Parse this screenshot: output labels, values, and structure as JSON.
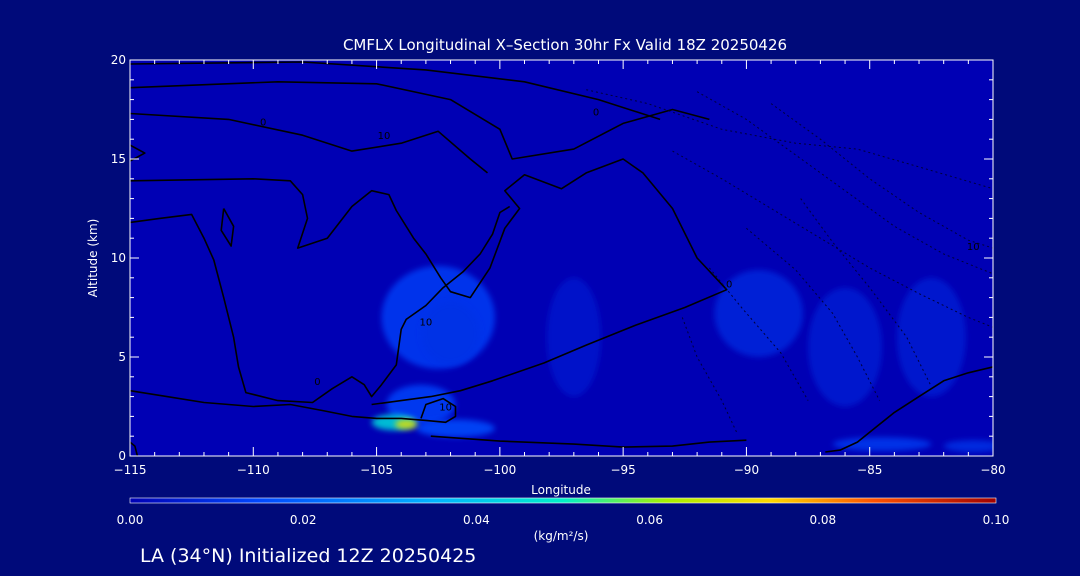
{
  "chart_data": {
    "type": "heatmap",
    "title": "CMFLX Longitudinal X–Section 30hr  Fx Valid 18Z 20250426",
    "xlabel": "Longitude",
    "ylabel": "Altitude (km)",
    "xlim": [
      -115,
      -80
    ],
    "ylim": [
      0,
      20
    ],
    "x_ticks": [
      -115,
      -110,
      -105,
      -100,
      -95,
      -90,
      -85,
      -80
    ],
    "x_tick_labels": [
      "−115",
      "−110",
      "−105",
      "−100",
      "−95",
      "−90",
      "−85",
      "−80"
    ],
    "y_ticks": [
      0,
      5,
      10,
      15,
      20
    ],
    "y_tick_labels": [
      "0",
      "5",
      "10",
      "15",
      "20"
    ],
    "colorbar": {
      "range": [
        0,
        0.1
      ],
      "tick_labels": [
        "0.00",
        "0.02",
        "0.04",
        "0.06",
        "0.08",
        "0.10"
      ],
      "units_label": "(kg/m²/s)"
    },
    "fill_blobs": [
      {
        "lon": -102.5,
        "alt": 7.0,
        "sx": 2.3,
        "sy": 2.6,
        "v": 0.013
      },
      {
        "lon": -102.0,
        "alt": 6.2,
        "sx": 1.2,
        "sy": 1.6,
        "v": 0.01
      },
      {
        "lon": -103.2,
        "alt": 2.6,
        "sx": 1.4,
        "sy": 1.0,
        "v": 0.014
      },
      {
        "lon": -101.8,
        "alt": 1.4,
        "sx": 1.6,
        "sy": 0.45,
        "v": 0.016
      },
      {
        "lon": -104.3,
        "alt": 1.7,
        "sx": 0.9,
        "sy": 0.4,
        "v": 0.045
      },
      {
        "lon": -103.8,
        "alt": 1.6,
        "sx": 0.45,
        "sy": 0.25,
        "v": 0.07
      },
      {
        "lon": -97.0,
        "alt": 6.0,
        "sx": 1.1,
        "sy": 3.0,
        "v": 0.005
      },
      {
        "lon": -89.5,
        "alt": 7.2,
        "sx": 1.8,
        "sy": 2.2,
        "v": 0.008
      },
      {
        "lon": -86.0,
        "alt": 5.5,
        "sx": 1.5,
        "sy": 3.0,
        "v": 0.006
      },
      {
        "lon": -82.5,
        "alt": 6.0,
        "sx": 1.4,
        "sy": 3.0,
        "v": 0.006
      },
      {
        "lon": -84.5,
        "alt": 0.6,
        "sx": 2.0,
        "sy": 0.35,
        "v": 0.012
      },
      {
        "lon": -80.8,
        "alt": 0.5,
        "sx": 1.2,
        "sy": 0.3,
        "v": 0.01
      }
    ],
    "contour_lines": [
      {
        "style": "solid",
        "points": [
          [
            -115,
            19.8
          ],
          [
            -108,
            19.9
          ],
          [
            -103,
            19.5
          ],
          [
            -99,
            18.9
          ],
          [
            -96,
            18.0
          ],
          [
            -93.5,
            17.0
          ]
        ]
      },
      {
        "style": "solid",
        "points": [
          [
            -115,
            18.6
          ],
          [
            -109,
            18.9
          ],
          [
            -105,
            18.8
          ],
          [
            -102,
            18.0
          ],
          [
            -100,
            16.5
          ],
          [
            -99.5,
            15.0
          ],
          [
            -97,
            15.5
          ],
          [
            -95,
            16.8
          ],
          [
            -93,
            17.5
          ],
          [
            -91.5,
            17.0
          ]
        ]
      },
      {
        "style": "solid",
        "points": [
          [
            -115,
            17.3
          ],
          [
            -111,
            17.0
          ],
          [
            -108,
            16.2
          ],
          [
            -106,
            15.4
          ],
          [
            -104,
            15.8
          ],
          [
            -102.5,
            16.4
          ],
          [
            -101.2,
            15.0
          ],
          [
            -100.5,
            14.3
          ]
        ]
      },
      {
        "style": "solid",
        "points": [
          [
            -115,
            15.7
          ],
          [
            -114.4,
            15.3
          ],
          [
            -115,
            14.9
          ]
        ]
      },
      {
        "style": "solid",
        "points": [
          [
            -115,
            13.9
          ],
          [
            -110,
            14.0
          ],
          [
            -108.5,
            13.9
          ],
          [
            -108,
            13.2
          ],
          [
            -107.8,
            12.0
          ],
          [
            -108.2,
            10.5
          ],
          [
            -107.0,
            11.0
          ],
          [
            -106.0,
            12.6
          ],
          [
            -105.2,
            13.4
          ],
          [
            -104.5,
            13.2
          ],
          [
            -104.2,
            12.4
          ],
          [
            -103.5,
            11.0
          ],
          [
            -103.0,
            10.2
          ],
          [
            -102.4,
            9.0
          ],
          [
            -102.0,
            8.3
          ],
          [
            -101.2,
            8.0
          ],
          [
            -100.4,
            9.5
          ],
          [
            -99.8,
            11.5
          ],
          [
            -99.2,
            12.5
          ],
          [
            -99.8,
            13.4
          ],
          [
            -99.0,
            14.2
          ],
          [
            -97.5,
            13.5
          ],
          [
            -96.5,
            14.3
          ],
          [
            -95.0,
            15.0
          ],
          [
            -94.2,
            14.3
          ],
          [
            -93.0,
            12.5
          ],
          [
            -92.0,
            10.0
          ],
          [
            -90.8,
            8.4
          ],
          [
            -92.5,
            7.5
          ],
          [
            -94.5,
            6.6
          ],
          [
            -96.5,
            5.6
          ],
          [
            -98.2,
            4.7
          ],
          [
            -100.3,
            3.8
          ],
          [
            -101.6,
            3.3
          ],
          [
            -102.8,
            3.0
          ],
          [
            -104.0,
            2.8
          ],
          [
            -105.2,
            2.6
          ]
        ]
      },
      {
        "style": "solid",
        "points": [
          [
            -115,
            11.8
          ],
          [
            -113.8,
            12.0
          ],
          [
            -112.5,
            12.2
          ],
          [
            -112.0,
            11.0
          ],
          [
            -111.6,
            9.9
          ],
          [
            -111.2,
            8.0
          ],
          [
            -110.8,
            6.0
          ],
          [
            -110.6,
            4.5
          ],
          [
            -110.3,
            3.2
          ],
          [
            -109.0,
            2.8
          ],
          [
            -107.6,
            2.7
          ],
          [
            -106.8,
            3.4
          ],
          [
            -106.0,
            4.0
          ],
          [
            -105.5,
            3.6
          ],
          [
            -105.2,
            3.0
          ],
          [
            -104.8,
            3.6
          ],
          [
            -104.2,
            4.6
          ],
          [
            -104.0,
            6.4
          ],
          [
            -103.8,
            6.9
          ],
          [
            -103.0,
            7.6
          ],
          [
            -102.3,
            8.5
          ],
          [
            -101.5,
            9.3
          ],
          [
            -100.8,
            10.2
          ],
          [
            -100.3,
            11.2
          ],
          [
            -100.0,
            12.3
          ],
          [
            -99.6,
            12.6
          ]
        ]
      },
      {
        "style": "solid",
        "points": [
          [
            -111.2,
            12.5
          ],
          [
            -110.8,
            11.6
          ],
          [
            -110.9,
            10.6
          ],
          [
            -111.3,
            11.4
          ],
          [
            -111.2,
            12.5
          ]
        ]
      },
      {
        "style": "solid",
        "points": [
          [
            -115,
            3.3
          ],
          [
            -113.5,
            3.0
          ],
          [
            -112.0,
            2.7
          ],
          [
            -110.0,
            2.5
          ],
          [
            -108.5,
            2.6
          ],
          [
            -107.2,
            2.3
          ],
          [
            -106.0,
            2.0
          ],
          [
            -105.0,
            1.9
          ],
          [
            -104.0,
            1.9
          ],
          [
            -103.0,
            1.8
          ],
          [
            -102.2,
            1.7
          ],
          [
            -101.8,
            2.0
          ],
          [
            -101.8,
            2.5
          ],
          [
            -102.3,
            2.9
          ],
          [
            -103.0,
            2.6
          ],
          [
            -103.2,
            1.9
          ]
        ]
      },
      {
        "style": "solid",
        "points": [
          [
            -114.7,
            0.0
          ],
          [
            -114.8,
            0.5
          ],
          [
            -115,
            0.7
          ]
        ]
      },
      {
        "style": "solid",
        "points": [
          [
            -102.8,
            1.0
          ],
          [
            -100.0,
            0.75
          ],
          [
            -97.0,
            0.6
          ],
          [
            -95.0,
            0.45
          ],
          [
            -93.0,
            0.5
          ],
          [
            -91.5,
            0.7
          ],
          [
            -90.0,
            0.8
          ]
        ]
      },
      {
        "style": "solid",
        "points": [
          [
            -80,
            4.5
          ],
          [
            -81.0,
            4.2
          ],
          [
            -82.0,
            3.8
          ],
          [
            -83.0,
            3.0
          ],
          [
            -84.0,
            2.2
          ],
          [
            -84.8,
            1.4
          ],
          [
            -85.5,
            0.7
          ],
          [
            -86.2,
            0.3
          ],
          [
            -86.8,
            0.2
          ]
        ]
      },
      {
        "style": "dotted",
        "points": [
          [
            -92,
            18.4
          ],
          [
            -90,
            17.0
          ],
          [
            -88,
            15.2
          ],
          [
            -86,
            13.4
          ],
          [
            -84,
            11.6
          ],
          [
            -82,
            10.2
          ],
          [
            -80,
            9.2
          ]
        ]
      },
      {
        "style": "dotted",
        "points": [
          [
            -93,
            15.4
          ],
          [
            -91,
            14.0
          ],
          [
            -89,
            12.5
          ],
          [
            -87,
            11.0
          ],
          [
            -85,
            9.5
          ],
          [
            -83,
            8.2
          ],
          [
            -81,
            7.0
          ],
          [
            -80,
            6.5
          ]
        ]
      },
      {
        "style": "dotted",
        "points": [
          [
            -89,
            17.8
          ],
          [
            -87,
            16.0
          ],
          [
            -85,
            14.0
          ],
          [
            -83,
            12.3
          ],
          [
            -81,
            10.9
          ],
          [
            -80,
            10.5
          ]
        ]
      },
      {
        "style": "dotted",
        "points": [
          [
            -96.5,
            18.5
          ],
          [
            -94,
            17.8
          ],
          [
            -91,
            16.5
          ],
          [
            -88,
            15.8
          ],
          [
            -85.5,
            15.5
          ],
          [
            -83,
            14.6
          ],
          [
            -80,
            13.5
          ]
        ]
      },
      {
        "style": "dotted",
        "points": [
          [
            -90,
            11.5
          ],
          [
            -88,
            9.4
          ],
          [
            -86.5,
            7.2
          ],
          [
            -85.5,
            5.0
          ],
          [
            -84.6,
            2.8
          ]
        ]
      },
      {
        "style": "dotted",
        "points": [
          [
            -87.8,
            13.0
          ],
          [
            -86.5,
            10.8
          ],
          [
            -85.0,
            8.5
          ],
          [
            -83.5,
            6.0
          ],
          [
            -82.5,
            3.5
          ]
        ]
      },
      {
        "style": "dotted",
        "points": [
          [
            -91.5,
            9.5
          ],
          [
            -90.2,
            7.5
          ],
          [
            -88.6,
            5.2
          ],
          [
            -87.5,
            2.8
          ]
        ]
      },
      {
        "style": "dotted",
        "points": [
          [
            -92.6,
            7.0
          ],
          [
            -92.0,
            5.0
          ],
          [
            -91.0,
            2.8
          ],
          [
            -90.4,
            1.2
          ]
        ]
      }
    ],
    "contour_labels": [
      {
        "text": "10",
        "lon": -104.7,
        "alt": 16.2
      },
      {
        "text": "10",
        "lon": -103.0,
        "alt": 6.8
      },
      {
        "text": "10",
        "lon": -102.2,
        "alt": 2.5
      },
      {
        "text": "0",
        "lon": -96.1,
        "alt": 17.4
      },
      {
        "text": "0",
        "lon": -90.7,
        "alt": 8.7
      },
      {
        "text": "10",
        "lon": -80.8,
        "alt": 10.6
      },
      {
        "text": "0",
        "lon": -107.4,
        "alt": 3.8
      },
      {
        "text": "0",
        "lon": -109.6,
        "alt": 16.9
      }
    ]
  },
  "footer": {
    "location_text": "LA (34°N) Initialized 12Z 20250425"
  },
  "colors": {
    "background": "#000a7a",
    "plot_background": "#0000b4",
    "contour_solid": "#000000",
    "contour_dotted": "#00003a",
    "frame": "#ffffff"
  }
}
